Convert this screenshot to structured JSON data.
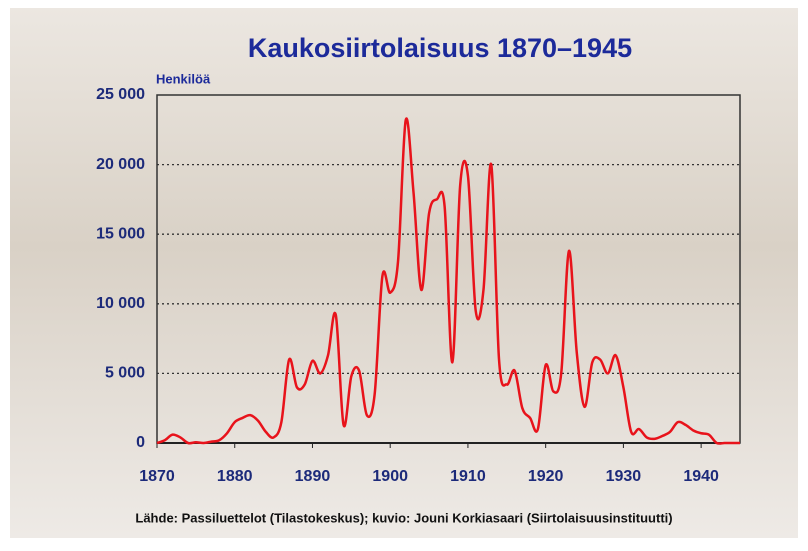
{
  "chart_data": {
    "type": "line",
    "title": "Kaukosiirtolaisuus 1870–1945",
    "y_label": "Henkilöä",
    "source": "Lähde: Passiluettelot (Tilastokeskus); kuvio: Jouni Korkiasaari (Siirtolaisuusinstituutti)",
    "x": [
      1870,
      1871,
      1872,
      1873,
      1874,
      1875,
      1876,
      1877,
      1878,
      1879,
      1880,
      1881,
      1882,
      1883,
      1884,
      1885,
      1886,
      1887,
      1888,
      1889,
      1890,
      1891,
      1892,
      1893,
      1894,
      1895,
      1896,
      1897,
      1898,
      1899,
      1900,
      1901,
      1902,
      1903,
      1904,
      1905,
      1906,
      1907,
      1908,
      1909,
      1910,
      1911,
      1912,
      1913,
      1914,
      1915,
      1916,
      1917,
      1918,
      1919,
      1920,
      1921,
      1922,
      1923,
      1924,
      1925,
      1926,
      1927,
      1928,
      1929,
      1930,
      1931,
      1932,
      1933,
      1934,
      1935,
      1936,
      1937,
      1938,
      1939,
      1940,
      1941,
      1942,
      1943,
      1944,
      1945
    ],
    "series": [
      {
        "color": "#e8131b",
        "values": [
          0,
          200,
          600,
          400,
          0,
          50,
          0,
          100,
          200,
          700,
          1500,
          1800,
          2000,
          1600,
          800,
          400,
          1500,
          6000,
          4000,
          4200,
          5900,
          5000,
          6300,
          9200,
          1300,
          4800,
          5200,
          2000,
          3500,
          12000,
          10800,
          13000,
          23200,
          18000,
          11000,
          16500,
          17500,
          17000,
          5800,
          18500,
          19200,
          9500,
          11000,
          20000,
          6000,
          4200,
          5200,
          2500,
          1800,
          1000,
          5600,
          3700,
          5000,
          13800,
          6500,
          2600,
          5800,
          6000,
          5000,
          6300,
          4000,
          800,
          1000,
          400,
          300,
          500,
          800,
          1500,
          1300,
          900,
          700,
          600,
          0,
          0,
          0,
          0
        ]
      }
    ],
    "xlim": [
      1870,
      1945
    ],
    "xticks": [
      1870,
      1880,
      1890,
      1900,
      1910,
      1920,
      1930,
      1940
    ],
    "ylim": [
      0,
      25000
    ],
    "yticks": [
      0,
      {
        "value": 5000,
        "label": "5 000"
      },
      {
        "value": 10000,
        "label": "10 000"
      },
      {
        "value": 15000,
        "label": "15 000"
      },
      {
        "value": 20000,
        "label": "20 000"
      },
      {
        "value": 25000,
        "label": "25 000"
      }
    ],
    "grid": true
  }
}
